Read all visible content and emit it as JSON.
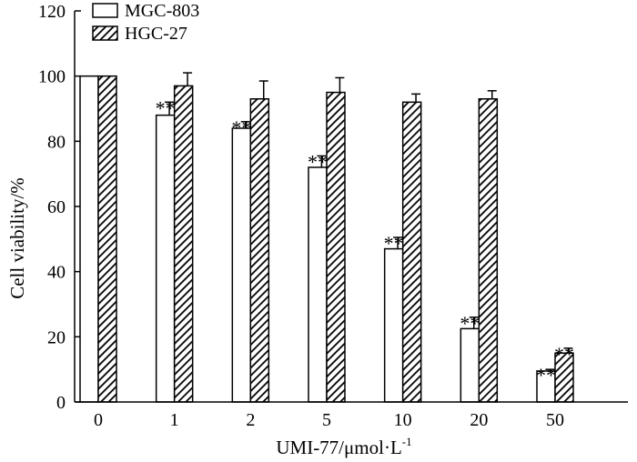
{
  "chart_data": {
    "type": "bar",
    "categories": [
      "0",
      "1",
      "2",
      "5",
      "10",
      "20",
      "50"
    ],
    "series": [
      {
        "name": "MGC-803",
        "values": [
          100,
          88,
          84,
          72,
          47,
          22.5,
          9.5
        ],
        "errors": [
          0,
          4,
          2,
          3.5,
          3.5,
          3.5,
          0.5
        ],
        "significance": [
          "",
          "**",
          "**",
          "**",
          "**",
          "**",
          "**"
        ],
        "fill": "#ffffff",
        "pattern": "none"
      },
      {
        "name": "HGC-27",
        "values": [
          100,
          97,
          93,
          95,
          92,
          93,
          15
        ],
        "errors": [
          0,
          4,
          5.5,
          4.5,
          2.5,
          2.5,
          1.5
        ],
        "significance": [
          "",
          "",
          "",
          "",
          "",
          "",
          "**"
        ],
        "fill": "#000000",
        "pattern": "diagonal-hatch"
      }
    ],
    "xlabel": "UMI-77/μmol·L",
    "xlabel_superscript": "-1",
    "ylabel": "Cell viability/%",
    "ylim": [
      0,
      120
    ],
    "yticks": [
      "0",
      "20",
      "40",
      "60",
      "80",
      "100",
      "120"
    ],
    "grid": false,
    "legend_position": "top-left"
  }
}
